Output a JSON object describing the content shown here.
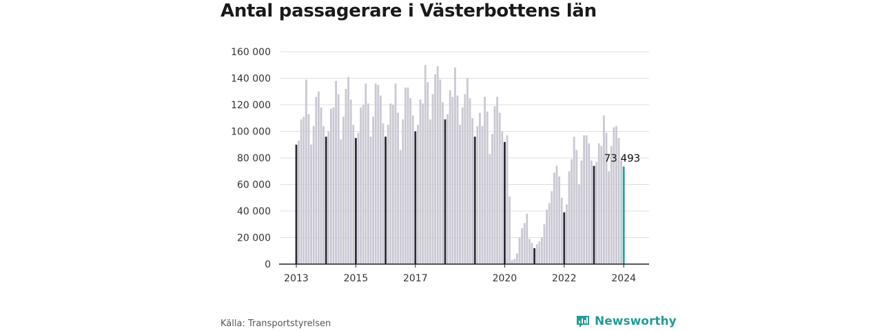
{
  "title": "Antal passagerare i Västerbottens län",
  "source": "Källa: Transportstyrelsen",
  "brand": "Newsworthy",
  "colors": {
    "bar_default": "#c9c8d3",
    "bar_january": "#2b2a36",
    "bar_latest": "#1aa59c",
    "grid": "#dddddd",
    "brand": "#239c95"
  },
  "chart_data": {
    "type": "bar",
    "title": "Antal passagerare i Västerbottens län",
    "xlabel": "",
    "ylabel": "",
    "ylim": [
      0,
      160000
    ],
    "y_ticks": [
      0,
      20000,
      40000,
      60000,
      80000,
      100000,
      120000,
      140000,
      160000
    ],
    "y_tick_labels": [
      "0",
      "20 000",
      "40 000",
      "60 000",
      "80 000",
      "100 000",
      "120 000",
      "140 000",
      "160 000"
    ],
    "x_tick_labels": [
      "2013",
      "2015",
      "2017",
      "2020",
      "2022",
      "2024"
    ],
    "start_period": "2013-01",
    "grid": true,
    "annotation": "73 493",
    "highlight": "January bars dark, latest month teal",
    "series": [
      {
        "values": [
          90000,
          93000,
          109000,
          111000,
          139000,
          113000,
          90000,
          104000,
          126000,
          130000,
          118000,
          104000,
          96000,
          100000,
          117000,
          118000,
          138000,
          128000,
          94000,
          111000,
          132000,
          141000,
          124000,
          105000,
          95000,
          99000,
          118000,
          120000,
          136000,
          121000,
          96000,
          111000,
          136000,
          135000,
          127000,
          106000,
          96000,
          105000,
          121000,
          120000,
          136000,
          114000,
          86000,
          109000,
          133000,
          133000,
          125000,
          112000,
          100000,
          105000,
          124000,
          121000,
          150000,
          137000,
          109000,
          128000,
          143000,
          149000,
          139000,
          122000,
          109000,
          113000,
          131000,
          126000,
          148000,
          127000,
          105000,
          118000,
          128000,
          140000,
          125000,
          110000,
          96000,
          104000,
          114000,
          104000,
          126000,
          115000,
          83000,
          98000,
          119000,
          126000,
          114000,
          100000,
          92000,
          97000,
          51000,
          3000,
          4000,
          8000,
          20000,
          27000,
          31000,
          38000,
          19000,
          16000,
          12000,
          15000,
          17000,
          20000,
          30000,
          41000,
          46000,
          55000,
          69000,
          74000,
          66000,
          50000,
          39000,
          45000,
          70000,
          79000,
          96000,
          86000,
          60000,
          78000,
          97000,
          97000,
          91000,
          78000,
          74000,
          77000,
          91000,
          89000,
          112000,
          99000,
          70000,
          89000,
          103000,
          104000,
          95000,
          78000,
          73493
        ]
      }
    ]
  }
}
